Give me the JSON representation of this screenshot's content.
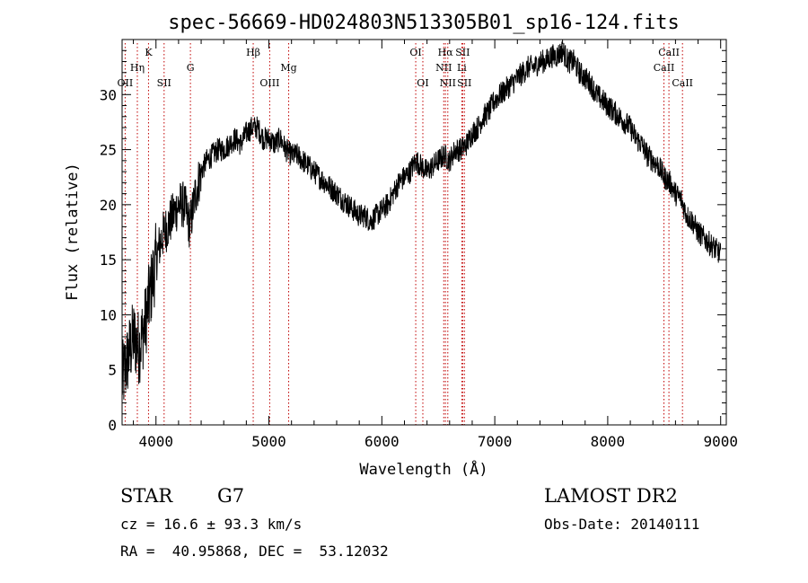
{
  "chart_data": {
    "type": "line",
    "title": "spec-56669-HD024803N513305B01_sp16-124.fits",
    "xlabel": "Wavelength (Å)",
    "ylabel": "Flux (relative)",
    "xlim": [
      3700,
      9050
    ],
    "ylim": [
      0,
      35
    ],
    "xticks": [
      4000,
      5000,
      6000,
      7000,
      8000,
      9000
    ],
    "yticks": [
      0,
      5,
      10,
      15,
      20,
      25,
      30
    ],
    "grid": false,
    "line_color": "#000000",
    "marker_color": "#c00000",
    "series": [
      {
        "x": [
          3700,
          3750,
          3800,
          3850,
          3900,
          3950,
          4000,
          4050,
          4100,
          4150,
          4200,
          4250,
          4300,
          4350,
          4400,
          4450,
          4500,
          4550,
          4600,
          4650,
          4700,
          4750,
          4800,
          4850,
          4900,
          4950,
          5000,
          5050,
          5100,
          5150,
          5200,
          5250,
          5300,
          5350,
          5400,
          5450,
          5500,
          5550,
          5600,
          5650,
          5700,
          5750,
          5800,
          5850,
          5900,
          5950,
          6000,
          6050,
          6100,
          6150,
          6200,
          6250,
          6300,
          6350,
          6400,
          6450,
          6500,
          6550,
          6600,
          6650,
          6700,
          6750,
          6800,
          6850,
          6900,
          6950,
          7000,
          7050,
          7100,
          7150,
          7200,
          7250,
          7300,
          7350,
          7400,
          7450,
          7500,
          7550,
          7600,
          7650,
          7700,
          7750,
          7800,
          7850,
          7900,
          7950,
          8000,
          8050,
          8100,
          8150,
          8200,
          8250,
          8300,
          8350,
          8400,
          8450,
          8500,
          8550,
          8600,
          8650,
          8700,
          8750,
          8800,
          8850,
          8900,
          8950,
          9000
        ],
        "values": [
          4,
          6,
          8,
          7,
          9,
          12,
          15,
          17,
          18,
          19,
          20,
          20,
          18,
          21,
          23,
          24,
          24.5,
          25,
          25,
          25.5,
          26,
          25.5,
          26.5,
          27,
          27,
          26,
          26,
          25.5,
          26,
          25,
          24.5,
          24.5,
          24,
          23.5,
          23,
          22.5,
          22,
          21.5,
          21,
          20.5,
          20,
          19.5,
          19,
          19,
          18.5,
          19,
          19.5,
          20,
          21,
          22,
          22.5,
          23,
          24,
          23.5,
          23,
          23.5,
          24,
          24.5,
          24,
          25,
          25,
          25.5,
          26.5,
          27,
          28,
          28.5,
          29.5,
          30,
          30.5,
          31,
          31.5,
          32,
          32.5,
          32.5,
          33,
          33,
          33.5,
          33.5,
          34,
          33,
          33,
          32,
          31.5,
          31,
          30,
          29.5,
          29,
          28.5,
          28,
          27.5,
          27,
          26,
          25.5,
          24.5,
          24,
          23.5,
          22.5,
          22,
          21,
          20.5,
          19,
          18.5,
          17.5,
          17,
          16.5,
          16,
          15.5
        ]
      }
    ],
    "lines": [
      {
        "label": "OII",
        "x": 3727,
        "level": 3
      },
      {
        "label": "Hη",
        "x": 3835,
        "level": 2
      },
      {
        "label": "K",
        "x": 3934,
        "level": 1
      },
      {
        "label": "SII",
        "x": 4072,
        "level": 3
      },
      {
        "label": "G",
        "x": 4305,
        "level": 2
      },
      {
        "label": "Hβ",
        "x": 4861,
        "level": 1
      },
      {
        "label": "OIII",
        "x": 5007,
        "level": 3
      },
      {
        "label": "Mg",
        "x": 5175,
        "level": 2
      },
      {
        "label": "OI",
        "x": 6300,
        "level": 1
      },
      {
        "label": "OI",
        "x": 6363,
        "level": 3
      },
      {
        "label": "Hα",
        "x": 6563,
        "level": 1
      },
      {
        "label": "NII",
        "x": 6548,
        "level": 2
      },
      {
        "label": "NII",
        "x": 6584,
        "level": 3
      },
      {
        "label": "SII",
        "x": 6716,
        "level": 1
      },
      {
        "label": "Li",
        "x": 6708,
        "level": 2
      },
      {
        "label": "SII",
        "x": 6731,
        "level": 3
      },
      {
        "label": "CaII",
        "x": 8498,
        "level": 2
      },
      {
        "label": "CaII",
        "x": 8542,
        "level": 1
      },
      {
        "label": "CaII",
        "x": 8662,
        "level": 3
      }
    ]
  },
  "info": {
    "object_type": "STAR",
    "subclass": "G7",
    "survey": "LAMOST DR2",
    "cz": "cz = 16.6 ± 93.3 km/s",
    "obs_date": "Obs-Date: 20140111",
    "coords": "RA =  40.95868, DEC =  53.12032"
  }
}
